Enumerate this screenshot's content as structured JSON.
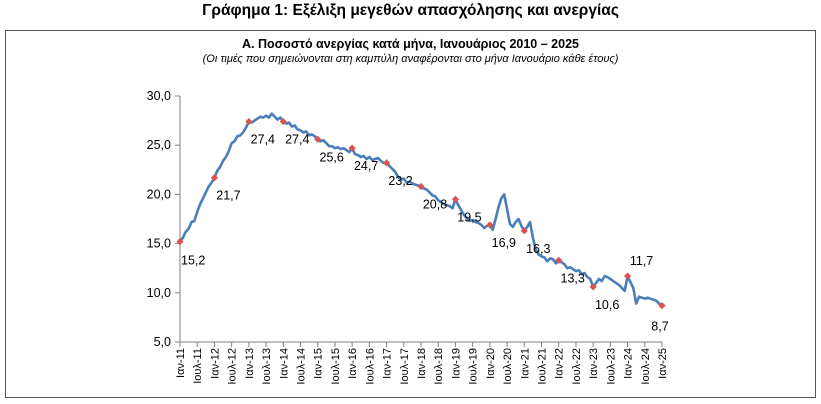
{
  "figure_title": "Γράφημα 1: Εξέλιξη μεγεθών απασχόλησης και ανεργίας",
  "chart_data": {
    "type": "line",
    "title": "Α. Ποσοστό ανεργίας κατά μήνα, Ιανουάριος 2010 – 2025",
    "subtitle": "(Οι τιμές που σημειώνονται στη καμπύλη αναφέρονται στο μήνα Ιανουάριο κάθε έτους)",
    "xlabel": "",
    "ylabel": "",
    "ylim": [
      5,
      30
    ],
    "yticks": [
      "5,0",
      "10,0",
      "15,0",
      "20,0",
      "25,0",
      "30,0"
    ],
    "ytick_values": [
      5,
      10,
      15,
      20,
      25,
      30
    ],
    "xticks": [
      "Ιαν-11",
      "Ιουλ-11",
      "Ιαν-12",
      "Ιουλ-12",
      "Ιαν-13",
      "Ιουλ-13",
      "Ιαν-14",
      "Ιουλ-14",
      "Ιαν-15",
      "Ιουλ-15",
      "Ιαν-16",
      "Ιουλ-16",
      "Ιαν-17",
      "Ιουλ-17",
      "Ιαν-18",
      "Ιουλ-18",
      "Ιαν-19",
      "Ιουλ-19",
      "Ιαν-20",
      "Ιουλ-20",
      "Ιαν-21",
      "Ιουλ-21",
      "Ιαν-22",
      "Ιουλ-22",
      "Ιαν-23",
      "Ιουλ-23",
      "Ιαν-24",
      "Ιουλ-24",
      "Ιαν-25"
    ],
    "grid": false,
    "line_color": "#4a7ebb",
    "marker_color": "#d9534f",
    "series": [
      {
        "values": [
          {
            "m": 0,
            "v": 15.2
          },
          {
            "m": 1,
            "v": 15.6
          },
          {
            "m": 2,
            "v": 16.2
          },
          {
            "m": 3,
            "v": 16.5
          },
          {
            "m": 4,
            "v": 17.2
          },
          {
            "m": 5,
            "v": 17.3
          },
          {
            "m": 6,
            "v": 18.2
          },
          {
            "m": 7,
            "v": 19.0
          },
          {
            "m": 8,
            "v": 19.6
          },
          {
            "m": 9,
            "v": 20.2
          },
          {
            "m": 10,
            "v": 20.8
          },
          {
            "m": 11,
            "v": 21.2
          },
          {
            "m": 12,
            "v": 21.7
          },
          {
            "m": 13,
            "v": 22.4
          },
          {
            "m": 14,
            "v": 22.8
          },
          {
            "m": 15,
            "v": 23.4
          },
          {
            "m": 16,
            "v": 23.8
          },
          {
            "m": 17,
            "v": 24.4
          },
          {
            "m": 18,
            "v": 25.2
          },
          {
            "m": 19,
            "v": 25.4
          },
          {
            "m": 20,
            "v": 25.9
          },
          {
            "m": 21,
            "v": 26.0
          },
          {
            "m": 22,
            "v": 26.3
          },
          {
            "m": 23,
            "v": 26.8
          },
          {
            "m": 24,
            "v": 27.4
          },
          {
            "m": 25,
            "v": 27.3
          },
          {
            "m": 26,
            "v": 27.5
          },
          {
            "m": 27,
            "v": 27.7
          },
          {
            "m": 28,
            "v": 27.9
          },
          {
            "m": 29,
            "v": 27.8
          },
          {
            "m": 30,
            "v": 28.0
          },
          {
            "m": 31,
            "v": 27.8
          },
          {
            "m": 32,
            "v": 28.2
          },
          {
            "m": 33,
            "v": 27.9
          },
          {
            "m": 34,
            "v": 27.6
          },
          {
            "m": 35,
            "v": 27.8
          },
          {
            "m": 36,
            "v": 27.4
          },
          {
            "m": 37,
            "v": 27.2
          },
          {
            "m": 38,
            "v": 27.3
          },
          {
            "m": 39,
            "v": 26.9
          },
          {
            "m": 40,
            "v": 27.0
          },
          {
            "m": 41,
            "v": 26.6
          },
          {
            "m": 42,
            "v": 26.5
          },
          {
            "m": 43,
            "v": 26.3
          },
          {
            "m": 44,
            "v": 26.4
          },
          {
            "m": 45,
            "v": 26.0
          },
          {
            "m": 46,
            "v": 26.1
          },
          {
            "m": 47,
            "v": 25.9
          },
          {
            "m": 48,
            "v": 25.6
          },
          {
            "m": 49,
            "v": 25.4
          },
          {
            "m": 50,
            "v": 25.5
          },
          {
            "m": 51,
            "v": 25.2
          },
          {
            "m": 52,
            "v": 24.9
          },
          {
            "m": 53,
            "v": 24.9
          },
          {
            "m": 54,
            "v": 24.7
          },
          {
            "m": 55,
            "v": 24.8
          },
          {
            "m": 56,
            "v": 24.6
          },
          {
            "m": 57,
            "v": 24.7
          },
          {
            "m": 58,
            "v": 24.5
          },
          {
            "m": 59,
            "v": 24.3
          },
          {
            "m": 60,
            "v": 24.7
          },
          {
            "m": 61,
            "v": 24.1
          },
          {
            "m": 62,
            "v": 24.0
          },
          {
            "m": 63,
            "v": 23.8
          },
          {
            "m": 64,
            "v": 23.9
          },
          {
            "m": 65,
            "v": 23.6
          },
          {
            "m": 66,
            "v": 23.8
          },
          {
            "m": 67,
            "v": 23.5
          },
          {
            "m": 68,
            "v": 23.6
          },
          {
            "m": 69,
            "v": 23.7
          },
          {
            "m": 70,
            "v": 23.4
          },
          {
            "m": 71,
            "v": 23.2
          },
          {
            "m": 72,
            "v": 23.2
          },
          {
            "m": 73,
            "v": 22.9
          },
          {
            "m": 74,
            "v": 22.6
          },
          {
            "m": 75,
            "v": 22.3
          },
          {
            "m": 76,
            "v": 21.8
          },
          {
            "m": 77,
            "v": 21.5
          },
          {
            "m": 78,
            "v": 21.6
          },
          {
            "m": 79,
            "v": 21.2
          },
          {
            "m": 80,
            "v": 21.3
          },
          {
            "m": 81,
            "v": 21.1
          },
          {
            "m": 82,
            "v": 21.0
          },
          {
            "m": 83,
            "v": 20.9
          },
          {
            "m": 84,
            "v": 20.8
          },
          {
            "m": 85,
            "v": 20.6
          },
          {
            "m": 86,
            "v": 20.5
          },
          {
            "m": 87,
            "v": 20.2
          },
          {
            "m": 88,
            "v": 19.9
          },
          {
            "m": 89,
            "v": 19.8
          },
          {
            "m": 90,
            "v": 19.4
          },
          {
            "m": 91,
            "v": 19.2
          },
          {
            "m": 92,
            "v": 19.0
          },
          {
            "m": 93,
            "v": 18.9
          },
          {
            "m": 94,
            "v": 18.8
          },
          {
            "m": 95,
            "v": 18.6
          },
          {
            "m": 96,
            "v": 19.5
          },
          {
            "m": 97,
            "v": 18.9
          },
          {
            "m": 98,
            "v": 18.4
          },
          {
            "m": 99,
            "v": 17.9
          },
          {
            "m": 100,
            "v": 17.6
          },
          {
            "m": 101,
            "v": 17.3
          },
          {
            "m": 102,
            "v": 17.4
          },
          {
            "m": 103,
            "v": 17.2
          },
          {
            "m": 104,
            "v": 17.1
          },
          {
            "m": 105,
            "v": 16.9
          },
          {
            "m": 106,
            "v": 16.6
          },
          {
            "m": 107,
            "v": 16.8
          },
          {
            "m": 108,
            "v": 16.9
          },
          {
            "m": 109,
            "v": 16.4
          },
          {
            "m": 110,
            "v": 17.5
          },
          {
            "m": 111,
            "v": 18.7
          },
          {
            "m": 112,
            "v": 19.6
          },
          {
            "m": 113,
            "v": 20.0
          },
          {
            "m": 114,
            "v": 18.5
          },
          {
            "m": 115,
            "v": 17.0
          },
          {
            "m": 116,
            "v": 16.7
          },
          {
            "m": 117,
            "v": 17.2
          },
          {
            "m": 118,
            "v": 17.5
          },
          {
            "m": 119,
            "v": 16.8
          },
          {
            "m": 120,
            "v": 16.3
          },
          {
            "m": 121,
            "v": 16.7
          },
          {
            "m": 122,
            "v": 17.2
          },
          {
            "m": 123,
            "v": 15.6
          },
          {
            "m": 124,
            "v": 14.4
          },
          {
            "m": 125,
            "v": 13.9
          },
          {
            "m": 126,
            "v": 13.7
          },
          {
            "m": 127,
            "v": 13.6
          },
          {
            "m": 128,
            "v": 13.2
          },
          {
            "m": 129,
            "v": 13.5
          },
          {
            "m": 130,
            "v": 13.4
          },
          {
            "m": 131,
            "v": 13.0
          },
          {
            "m": 132,
            "v": 13.3
          },
          {
            "m": 133,
            "v": 13.1
          },
          {
            "m": 134,
            "v": 12.9
          },
          {
            "m": 135,
            "v": 12.5
          },
          {
            "m": 136,
            "v": 12.6
          },
          {
            "m": 137,
            "v": 12.4
          },
          {
            "m": 138,
            "v": 12.2
          },
          {
            "m": 139,
            "v": 12.3
          },
          {
            "m": 140,
            "v": 11.9
          },
          {
            "m": 141,
            "v": 12.0
          },
          {
            "m": 142,
            "v": 11.6
          },
          {
            "m": 143,
            "v": 11.4
          },
          {
            "m": 144,
            "v": 10.6
          },
          {
            "m": 145,
            "v": 11.0
          },
          {
            "m": 146,
            "v": 11.4
          },
          {
            "m": 147,
            "v": 11.2
          },
          {
            "m": 148,
            "v": 11.7
          },
          {
            "m": 149,
            "v": 11.6
          },
          {
            "m": 150,
            "v": 11.4
          },
          {
            "m": 151,
            "v": 11.2
          },
          {
            "m": 152,
            "v": 11.0
          },
          {
            "m": 153,
            "v": 10.8
          },
          {
            "m": 154,
            "v": 10.5
          },
          {
            "m": 155,
            "v": 10.2
          },
          {
            "m": 156,
            "v": 11.7
          },
          {
            "m": 157,
            "v": 11.1
          },
          {
            "m": 158,
            "v": 10.5
          },
          {
            "m": 159,
            "v": 8.9
          },
          {
            "m": 160,
            "v": 9.6
          },
          {
            "m": 161,
            "v": 9.5
          },
          {
            "m": 162,
            "v": 9.4
          },
          {
            "m": 163,
            "v": 9.5
          },
          {
            "m": 164,
            "v": 9.4
          },
          {
            "m": 165,
            "v": 9.3
          },
          {
            "m": 166,
            "v": 9.2
          },
          {
            "m": 167,
            "v": 8.9
          },
          {
            "m": 168,
            "v": 8.7
          }
        ]
      }
    ],
    "markers": [
      {
        "m": 0,
        "v": 15.2,
        "label": "15,2",
        "pos": "below"
      },
      {
        "m": 12,
        "v": 21.7,
        "label": "21,7",
        "pos": "below"
      },
      {
        "m": 24,
        "v": 27.4,
        "label": "27,4",
        "pos": "below"
      },
      {
        "m": 36,
        "v": 27.4,
        "label": "27,4",
        "pos": "below"
      },
      {
        "m": 48,
        "v": 25.6,
        "label": "25,6",
        "pos": "below"
      },
      {
        "m": 60,
        "v": 24.7,
        "label": "24,7",
        "pos": "below"
      },
      {
        "m": 72,
        "v": 23.2,
        "label": "23,2",
        "pos": "below"
      },
      {
        "m": 84,
        "v": 20.8,
        "label": "20,8",
        "pos": "below"
      },
      {
        "m": 96,
        "v": 19.5,
        "label": "19,5",
        "pos": "below"
      },
      {
        "m": 108,
        "v": 16.9,
        "label": "16,9",
        "pos": "below"
      },
      {
        "m": 120,
        "v": 16.3,
        "label": "16,3",
        "pos": "below"
      },
      {
        "m": 132,
        "v": 13.3,
        "label": "13,3",
        "pos": "below"
      },
      {
        "m": 144,
        "v": 10.6,
        "label": "10,6",
        "pos": "below"
      },
      {
        "m": 156,
        "v": 11.7,
        "label": "11,7",
        "pos": "above"
      },
      {
        "m": 168,
        "v": 8.7,
        "label": "8,7",
        "pos": "below"
      }
    ]
  }
}
